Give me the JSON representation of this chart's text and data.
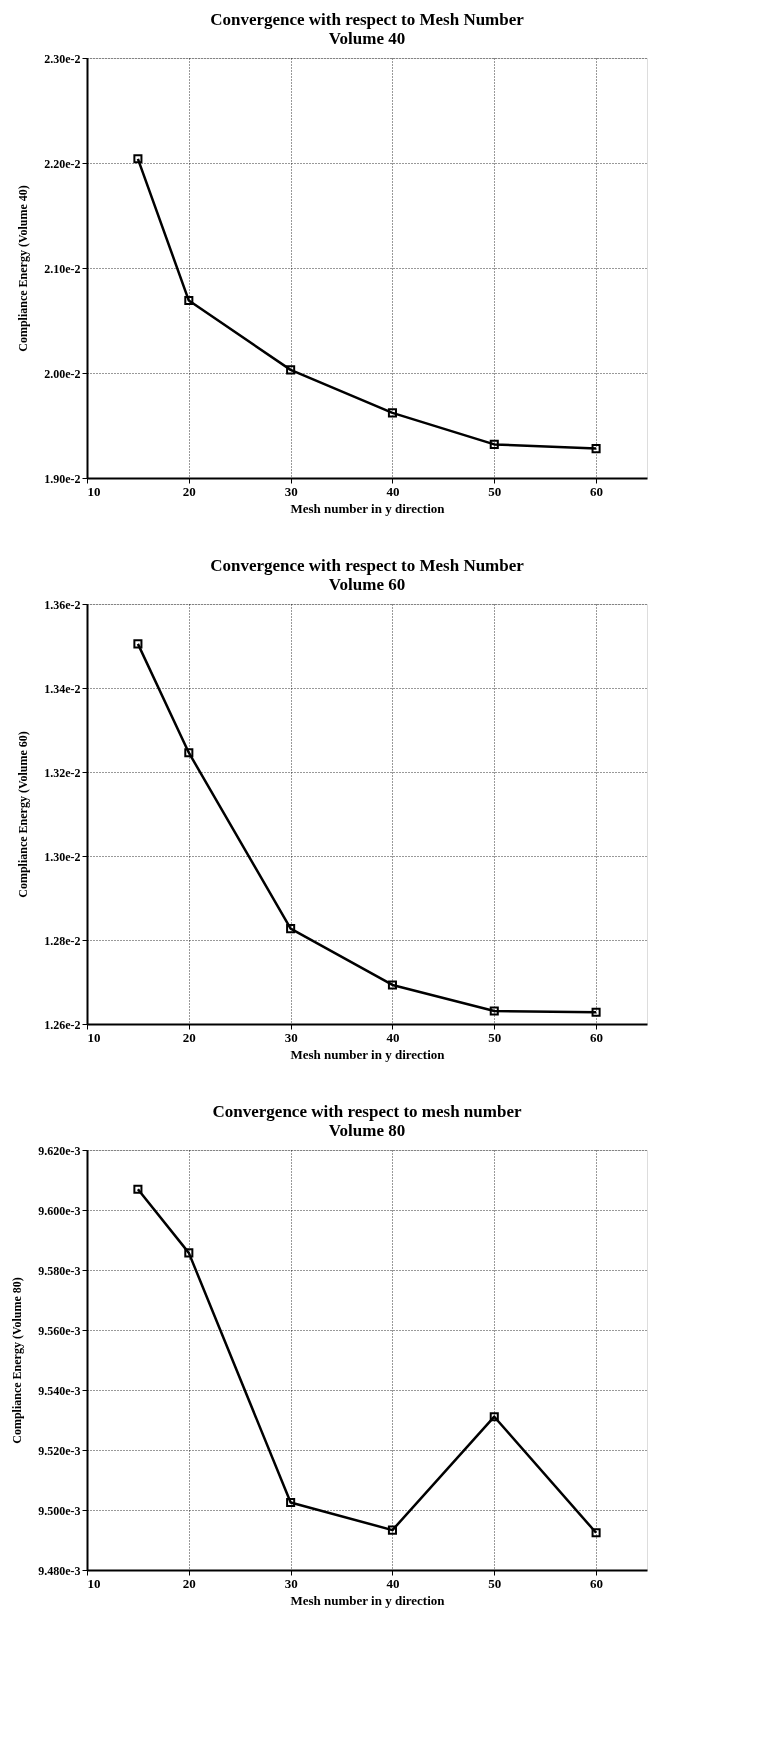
{
  "chart_data": [
    {
      "type": "line",
      "title": "Convergence with respect to Mesh Number",
      "subtitle": "Volume 40",
      "xlabel": "Mesh number in y direction",
      "ylabel": "Compliance Energy (Volume 40)",
      "x": [
        15,
        20,
        30,
        40,
        50,
        60
      ],
      "series": [
        {
          "color": "#000000",
          "values": [
            0.02204,
            0.02069,
            0.02003,
            0.01962,
            0.01932,
            0.01928
          ]
        }
      ],
      "xlim": [
        10,
        65
      ],
      "xticks": [
        10,
        20,
        30,
        40,
        50,
        60
      ],
      "ylim": [
        0.019,
        0.023
      ],
      "yticks": [
        {
          "value": 0.019,
          "label": "1.90e-2"
        },
        {
          "value": 0.02,
          "label": "2.00e-2"
        },
        {
          "value": 0.021,
          "label": "2.10e-2"
        },
        {
          "value": 0.022,
          "label": "2.20e-2"
        },
        {
          "value": 0.023,
          "label": "2.30e-2"
        }
      ],
      "grid": true,
      "marker": "square",
      "line_style": "solid"
    },
    {
      "type": "line",
      "title": "Convergence with respect to Mesh Number",
      "subtitle": "Volume 60",
      "xlabel": "Mesh number in y direction",
      "ylabel": "Compliance Energy (Volume 60)",
      "x": [
        15,
        20,
        30,
        40,
        50,
        60
      ],
      "series": [
        {
          "color": "#000000",
          "values": [
            0.013505,
            0.013246,
            0.012827,
            0.012693,
            0.012631,
            0.012628
          ]
        }
      ],
      "xlim": [
        10,
        65
      ],
      "xticks": [
        10,
        20,
        30,
        40,
        50,
        60
      ],
      "ylim": [
        0.0126,
        0.0136
      ],
      "yticks": [
        {
          "value": 0.0126,
          "label": "1.26e-2"
        },
        {
          "value": 0.0128,
          "label": "1.28e-2"
        },
        {
          "value": 0.013,
          "label": "1.30e-2"
        },
        {
          "value": 0.0132,
          "label": "1.32e-2"
        },
        {
          "value": 0.0134,
          "label": "1.34e-2"
        },
        {
          "value": 0.0136,
          "label": "1.36e-2"
        }
      ],
      "grid": true,
      "marker": "square",
      "line_style": "solid"
    },
    {
      "type": "line",
      "title": "Convergence with respect to mesh number",
      "subtitle": "Volume 80",
      "xlabel": "Mesh number in y direction",
      "ylabel": "Compliance Energy (Volume 80)",
      "x": [
        15,
        20,
        30,
        40,
        50,
        60
      ],
      "series": [
        {
          "color": "#000000",
          "values": [
            0.0096069,
            0.0095857,
            0.0095025,
            0.0094933,
            0.0095311,
            0.0094924
          ]
        }
      ],
      "xlim": [
        10,
        65
      ],
      "xticks": [
        10,
        20,
        30,
        40,
        50,
        60
      ],
      "ylim": [
        0.00948,
        0.00962
      ],
      "yticks": [
        {
          "value": 0.00948,
          "label": "9.480e-3"
        },
        {
          "value": 0.0095,
          "label": "9.500e-3"
        },
        {
          "value": 0.00952,
          "label": "9.520e-3"
        },
        {
          "value": 0.00954,
          "label": "9.540e-3"
        },
        {
          "value": 0.00956,
          "label": "9.560e-3"
        },
        {
          "value": 0.00958,
          "label": "9.580e-3"
        },
        {
          "value": 0.0096,
          "label": "9.600e-3"
        },
        {
          "value": 0.00962,
          "label": "9.620e-3"
        }
      ],
      "grid": true,
      "marker": "square",
      "line_style": "solid"
    }
  ]
}
